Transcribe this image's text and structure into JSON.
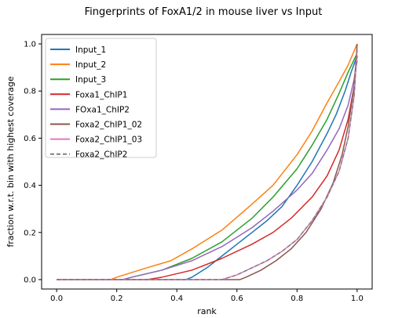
{
  "chart_data": {
    "type": "line",
    "title": "Fingerprints of FoxA1/2 in mouse liver vs Input",
    "xlabel": "rank",
    "ylabel": "fraction w.r.t. bin with highest coverage",
    "xlim": [
      -0.05,
      1.05
    ],
    "ylim": [
      -0.04,
      1.04
    ],
    "xticks": [
      0.0,
      0.2,
      0.4,
      0.6,
      0.8,
      1.0
    ],
    "yticks": [
      0.0,
      0.2,
      0.4,
      0.6,
      0.8,
      1.0
    ],
    "xtick_labels": [
      "0.0",
      "0.2",
      "0.4",
      "0.6",
      "0.8",
      "1.0"
    ],
    "ytick_labels": [
      "0.0",
      "0.2",
      "0.4",
      "0.6",
      "0.8",
      "1.0"
    ],
    "grid": false,
    "legend_position": "upper-left",
    "series": [
      {
        "name": "Input_1",
        "color": "#1f77b4",
        "dash": "solid",
        "x": [
          0.0,
          0.43,
          0.45,
          0.5,
          0.55,
          0.6,
          0.65,
          0.7,
          0.75,
          0.8,
          0.85,
          0.9,
          0.93,
          0.96,
          0.98,
          1.0
        ],
        "y": [
          0.0,
          0.0,
          0.01,
          0.05,
          0.1,
          0.15,
          0.2,
          0.25,
          0.31,
          0.4,
          0.5,
          0.62,
          0.7,
          0.8,
          0.88,
          0.95
        ]
      },
      {
        "name": "Input_2",
        "color": "#ff7f0e",
        "dash": "solid",
        "x": [
          0.0,
          0.18,
          0.2,
          0.3,
          0.38,
          0.45,
          0.55,
          0.65,
          0.72,
          0.8,
          0.85,
          0.9,
          0.94,
          0.97,
          1.0
        ],
        "y": [
          0.0,
          0.0,
          0.01,
          0.05,
          0.08,
          0.13,
          0.21,
          0.32,
          0.4,
          0.53,
          0.63,
          0.75,
          0.84,
          0.91,
          1.0
        ]
      },
      {
        "name": "Input_3",
        "color": "#2ca02c",
        "dash": "solid",
        "x": [
          0.0,
          0.22,
          0.25,
          0.35,
          0.45,
          0.55,
          0.65,
          0.72,
          0.8,
          0.85,
          0.9,
          0.94,
          0.97,
          1.0
        ],
        "y": [
          0.0,
          0.0,
          0.01,
          0.04,
          0.09,
          0.16,
          0.26,
          0.35,
          0.47,
          0.57,
          0.68,
          0.79,
          0.88,
          0.96
        ]
      },
      {
        "name": "Foxa1_ChIP1",
        "color": "#d62728",
        "dash": "solid",
        "x": [
          0.0,
          0.3,
          0.35,
          0.45,
          0.55,
          0.65,
          0.72,
          0.78,
          0.85,
          0.9,
          0.94,
          0.97,
          0.99,
          1.0
        ],
        "y": [
          0.0,
          0.0,
          0.01,
          0.04,
          0.09,
          0.15,
          0.2,
          0.26,
          0.35,
          0.44,
          0.55,
          0.68,
          0.82,
          0.95
        ]
      },
      {
        "name": "FOxa1_ChIP2",
        "color": "#9467bd",
        "dash": "solid",
        "x": [
          0.0,
          0.22,
          0.25,
          0.35,
          0.45,
          0.55,
          0.65,
          0.72,
          0.8,
          0.85,
          0.9,
          0.94,
          0.97,
          0.99,
          1.0
        ],
        "y": [
          0.0,
          0.0,
          0.01,
          0.04,
          0.08,
          0.14,
          0.22,
          0.29,
          0.38,
          0.45,
          0.55,
          0.64,
          0.74,
          0.85,
          0.93
        ]
      },
      {
        "name": "Foxa2_ChIP1_02",
        "color": "#8c564b",
        "dash": "solid",
        "x": [
          0.0,
          0.61,
          0.63,
          0.68,
          0.73,
          0.78,
          0.83,
          0.88,
          0.92,
          0.95,
          0.97,
          0.99,
          1.0
        ],
        "y": [
          0.0,
          0.0,
          0.01,
          0.04,
          0.08,
          0.13,
          0.2,
          0.3,
          0.41,
          0.53,
          0.65,
          0.82,
          1.0
        ]
      },
      {
        "name": "Foxa2_ChIP1_03",
        "color": "#e377c2",
        "dash": "solid",
        "x": [
          0.0,
          0.55,
          0.6,
          0.65,
          0.7,
          0.75,
          0.8,
          0.85,
          0.9,
          0.94,
          0.97,
          0.99,
          1.0
        ],
        "y": [
          0.0,
          0.0,
          0.02,
          0.05,
          0.08,
          0.12,
          0.17,
          0.25,
          0.35,
          0.46,
          0.6,
          0.78,
          0.98
        ]
      },
      {
        "name": "Foxa2_ChIP2",
        "color": "#7f7f7f",
        "dash": "dashed",
        "x": [
          0.0,
          0.55,
          0.6,
          0.65,
          0.7,
          0.75,
          0.8,
          0.85,
          0.9,
          0.94,
          0.97,
          0.99,
          1.0
        ],
        "y": [
          0.0,
          0.0,
          0.02,
          0.05,
          0.08,
          0.12,
          0.17,
          0.25,
          0.35,
          0.46,
          0.6,
          0.78,
          0.98
        ]
      }
    ]
  }
}
